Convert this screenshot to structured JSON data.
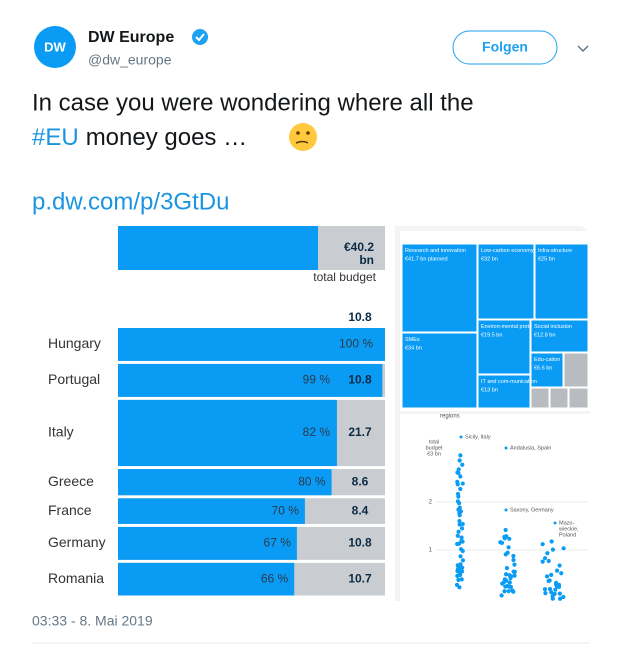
{
  "tweet": {
    "author": "DW Europe",
    "handle": "@dw_europe",
    "follow": "Folgen",
    "text_before": "In case you were wondering where all the",
    "hashtag": "#EU",
    "text_after": "money goes …",
    "link": "p.dw.com/p/3GtDu",
    "timestamp": "03:33 - 8. Mai 2019"
  },
  "image": {
    "budget": {
      "value_label": "€40.2",
      "unit": "bn",
      "caption": "total budget"
    },
    "chart_data": {
      "type": "bar",
      "categories": [
        "Hungary",
        "Portugal",
        "Italy",
        "Greece",
        "France",
        "Germany",
        "Romania"
      ],
      "percents": [
        100,
        99,
        82,
        80,
        70,
        67,
        66
      ],
      "percent_labels": [
        "100 %",
        "99 %",
        "82 %",
        "80 %",
        "70 %",
        "67 %",
        "66 %"
      ],
      "values": [
        10.8,
        10.8,
        21.7,
        8.6,
        8.4,
        10.8,
        10.7
      ],
      "blue": "#0a9cf5",
      "grey": "#c9cdd1"
    },
    "treemap": [
      {
        "name": "Research and innovation",
        "amount": "€41.7 bn planned"
      },
      {
        "name": "Low-carbon economy",
        "amount": "€32 bn"
      },
      {
        "name": "Infra-structure",
        "amount": "€25 bn"
      },
      {
        "name": "SMEs",
        "amount": "€34 bn"
      },
      {
        "name": "Environ-mental protection",
        "amount": "€19.5 bn"
      },
      {
        "name": "Social inclusion",
        "amount": "€12.8 bn"
      },
      {
        "name": "Edu-cation",
        "amount": "€6.6 bn"
      },
      {
        "name": "IT and com-munication",
        "amount": "€13 bn"
      }
    ],
    "swarm": {
      "header": "regions",
      "axis_title": [
        "total",
        "budget",
        "€3 bn"
      ],
      "ticks": [
        "2",
        "1"
      ],
      "labels": [
        "Sicily, Italy",
        "Andalusia, Spain",
        "Saxony, Germany",
        "Mazo-",
        "wieckie,",
        "Poland"
      ]
    }
  }
}
